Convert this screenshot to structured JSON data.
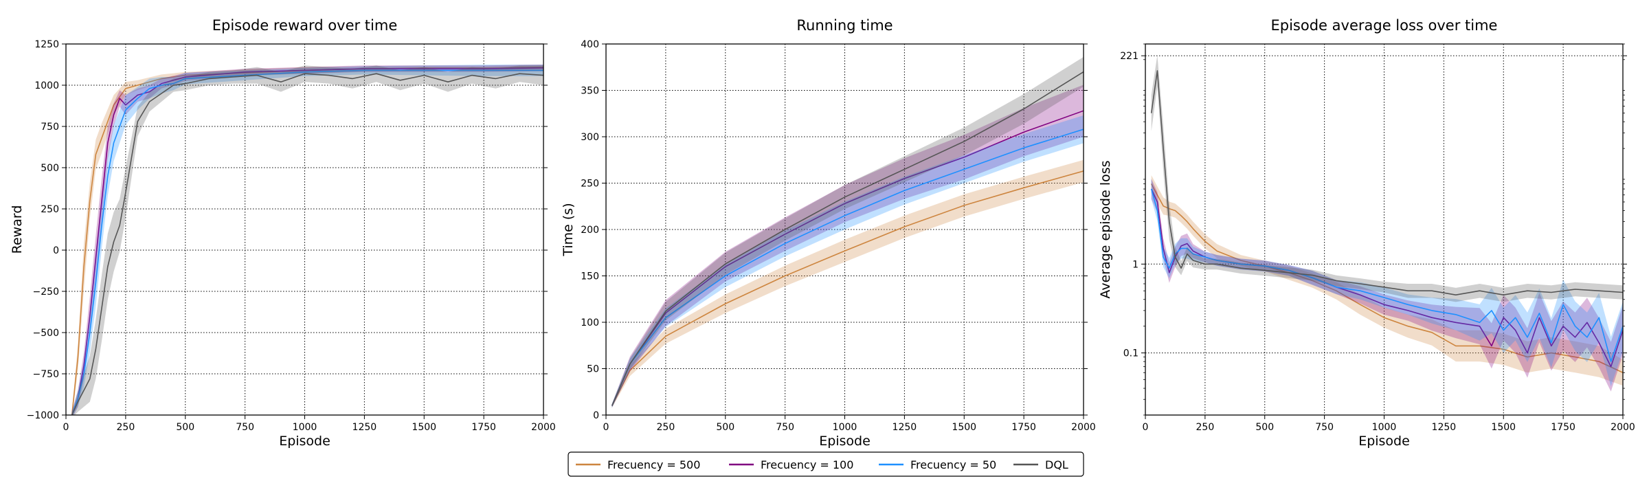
{
  "figure": {
    "legend": {
      "placement": "bottom-center",
      "entries": [
        {
          "label": "Frecuency = 500",
          "color": "#cd853f"
        },
        {
          "label": "Frecuency = 100",
          "color": "#800080"
        },
        {
          "label": "Frecuency = 50",
          "color": "#1e90ff"
        },
        {
          "label": "DQL",
          "color": "#555555"
        }
      ]
    }
  },
  "chart_data": [
    {
      "type": "line",
      "title": "Episode reward over time",
      "xlabel": "Episode",
      "ylabel": "Reward",
      "xlim": [
        0,
        2000
      ],
      "ylim": [
        -1000,
        1250
      ],
      "xticks": [
        0,
        250,
        500,
        750,
        1000,
        1250,
        1500,
        1750,
        2000
      ],
      "yticks": [
        -1000,
        -750,
        -500,
        -250,
        0,
        250,
        500,
        750,
        1000,
        1250
      ],
      "ytick_labels": [
        "−1000",
        "−750",
        "−500",
        "−250",
        "0",
        "250",
        "500",
        "750",
        "1000",
        "1250"
      ],
      "grid": true,
      "series": [
        {
          "name": "Frecuency = 500",
          "color": "#cd853f",
          "x": [
            25,
            50,
            75,
            100,
            125,
            150,
            200,
            250,
            300,
            400,
            500,
            750,
            1000,
            1250,
            1500,
            1750,
            2000
          ],
          "y": [
            -1000,
            -650,
            -100,
            300,
            580,
            680,
            880,
            980,
            1000,
            1040,
            1060,
            1075,
            1090,
            1100,
            1105,
            1105,
            1110
          ],
          "band": [
            20,
            80,
            140,
            110,
            90,
            90,
            60,
            40,
            30,
            25,
            20,
            20,
            20,
            15,
            15,
            15,
            15
          ]
        },
        {
          "name": "Frecuency = 100",
          "color": "#800080",
          "x": [
            25,
            50,
            75,
            100,
            125,
            150,
            175,
            200,
            225,
            250,
            300,
            350,
            400,
            500,
            750,
            1000,
            1250,
            1500,
            1750,
            2000
          ],
          "y": [
            -1000,
            -900,
            -700,
            -400,
            -50,
            300,
            650,
            820,
            920,
            880,
            940,
            960,
            1010,
            1050,
            1080,
            1090,
            1100,
            1100,
            1100,
            1105
          ],
          "band": [
            20,
            50,
            80,
            120,
            140,
            140,
            100,
            70,
            50,
            60,
            40,
            40,
            30,
            25,
            20,
            20,
            20,
            20,
            20,
            20
          ]
        },
        {
          "name": "Frecuency = 50",
          "color": "#1e90ff",
          "x": [
            25,
            50,
            75,
            100,
            125,
            150,
            175,
            200,
            225,
            250,
            300,
            350,
            400,
            450,
            500,
            750,
            1000,
            1250,
            1500,
            1750,
            2000
          ],
          "y": [
            -1000,
            -900,
            -750,
            -500,
            -200,
            150,
            450,
            650,
            750,
            850,
            920,
            980,
            1000,
            1010,
            1040,
            1060,
            1080,
            1090,
            1090,
            1090,
            1090
          ],
          "band": [
            20,
            50,
            80,
            120,
            140,
            140,
            120,
            110,
            100,
            90,
            70,
            60,
            50,
            40,
            35,
            30,
            25,
            25,
            30,
            35,
            35
          ]
        },
        {
          "name": "DQL",
          "color": "#555555",
          "x": [
            25,
            50,
            75,
            100,
            125,
            150,
            175,
            200,
            225,
            250,
            300,
            350,
            400,
            450,
            500,
            600,
            700,
            800,
            900,
            1000,
            1100,
            1200,
            1300,
            1400,
            1500,
            1600,
            1700,
            1800,
            1900,
            2000
          ],
          "y": [
            -1000,
            -920,
            -850,
            -780,
            -600,
            -350,
            -100,
            50,
            150,
            350,
            780,
            900,
            950,
            1000,
            1010,
            1040,
            1050,
            1060,
            1020,
            1070,
            1060,
            1040,
            1070,
            1030,
            1060,
            1020,
            1060,
            1040,
            1070,
            1060
          ],
          "band": [
            20,
            60,
            100,
            140,
            180,
            200,
            200,
            180,
            160,
            150,
            90,
            60,
            50,
            40,
            40,
            40,
            40,
            50,
            60,
            50,
            50,
            60,
            50,
            60,
            50,
            60,
            50,
            60,
            50,
            60
          ]
        }
      ]
    },
    {
      "type": "line",
      "title": "Running time",
      "xlabel": "Episode",
      "ylabel": "Time (s)",
      "xlim": [
        0,
        2000
      ],
      "ylim": [
        0,
        400
      ],
      "xticks": [
        0,
        250,
        500,
        750,
        1000,
        1250,
        1500,
        1750,
        2000
      ],
      "yticks": [
        0,
        50,
        100,
        150,
        200,
        250,
        300,
        350,
        400
      ],
      "ytick_labels": [
        "0",
        "50",
        "100",
        "150",
        "200",
        "250",
        "300",
        "350",
        "400"
      ],
      "grid": true,
      "series": [
        {
          "name": "Frecuency = 500",
          "color": "#cd853f",
          "x": [
            25,
            100,
            250,
            500,
            750,
            1000,
            1250,
            1500,
            1750,
            2000
          ],
          "y": [
            10,
            48,
            85,
            120,
            150,
            177,
            203,
            226,
            245,
            263
          ],
          "band": [
            2,
            6,
            8,
            10,
            11,
            12,
            12,
            12,
            12,
            12
          ]
        },
        {
          "name": "Frecuency = 100",
          "color": "#800080",
          "x": [
            25,
            100,
            250,
            500,
            750,
            1000,
            1250,
            1500,
            1750,
            2000
          ],
          "y": [
            10,
            55,
            110,
            160,
            195,
            228,
            255,
            278,
            305,
            328
          ],
          "band": [
            2,
            8,
            14,
            16,
            18,
            20,
            22,
            24,
            26,
            28
          ]
        },
        {
          "name": "Frecuency = 50",
          "color": "#1e90ff",
          "x": [
            25,
            100,
            250,
            500,
            750,
            1000,
            1250,
            1500,
            1750,
            2000
          ],
          "y": [
            10,
            55,
            105,
            150,
            185,
            215,
            242,
            265,
            288,
            308
          ],
          "band": [
            2,
            6,
            10,
            12,
            14,
            15,
            15,
            15,
            15,
            15
          ]
        },
        {
          "name": "DQL",
          "color": "#555555",
          "x": [
            25,
            100,
            250,
            500,
            750,
            1000,
            1250,
            1500,
            1750,
            2000
          ],
          "y": [
            10,
            55,
            112,
            163,
            200,
            235,
            265,
            295,
            330,
            370
          ],
          "band": [
            2,
            6,
            10,
            12,
            12,
            13,
            14,
            15,
            16,
            16
          ]
        }
      ]
    },
    {
      "type": "line",
      "title": "Episode average loss over time",
      "xlabel": "Episode",
      "ylabel": "Average episode loss",
      "xlim": [
        0,
        2000
      ],
      "yscale": "log",
      "ylim": [
        0.02,
        300
      ],
      "xticks": [
        0,
        250,
        500,
        750,
        1000,
        1250,
        1500,
        1750,
        2000
      ],
      "yticks": [
        0.1,
        1,
        221
      ],
      "ytick_labels": [
        "0.1",
        "1",
        "221"
      ],
      "grid": true,
      "series": [
        {
          "name": "Frecuency = 500",
          "color": "#cd853f",
          "x": [
            25,
            50,
            75,
            100,
            125,
            150,
            175,
            200,
            250,
            300,
            400,
            500,
            600,
            700,
            800,
            900,
            1000,
            1100,
            1200,
            1300,
            1400,
            1500,
            1600,
            1700,
            1800,
            1900,
            2000
          ],
          "y": [
            8,
            6,
            4.5,
            4.2,
            4.0,
            3.5,
            3.0,
            2.5,
            1.8,
            1.4,
            1.1,
            0.95,
            0.8,
            0.65,
            0.5,
            0.35,
            0.25,
            0.2,
            0.17,
            0.12,
            0.12,
            0.11,
            0.09,
            0.1,
            0.09,
            0.08,
            0.06
          ],
          "band": [
            1.25,
            1.25,
            1.25,
            1.2,
            1.2,
            1.2,
            1.2,
            1.2,
            1.2,
            1.2,
            1.15,
            1.15,
            1.2,
            1.2,
            1.25,
            1.3,
            1.3,
            1.35,
            1.4,
            1.5,
            1.5,
            1.5,
            1.5,
            1.5,
            1.5,
            1.5,
            1.4
          ]
        },
        {
          "name": "Frecuency = 100",
          "color": "#800080",
          "x": [
            25,
            50,
            75,
            100,
            125,
            150,
            175,
            200,
            250,
            300,
            400,
            500,
            600,
            700,
            800,
            900,
            1000,
            1100,
            1200,
            1300,
            1400,
            1450,
            1500,
            1550,
            1600,
            1650,
            1700,
            1750,
            1800,
            1850,
            1900,
            1950,
            2000
          ],
          "y": [
            7,
            5,
            1.5,
            0.8,
            1.2,
            1.6,
            1.7,
            1.4,
            1.2,
            1.1,
            1.0,
            0.95,
            0.85,
            0.7,
            0.55,
            0.45,
            0.35,
            0.3,
            0.25,
            0.22,
            0.2,
            0.12,
            0.25,
            0.18,
            0.1,
            0.25,
            0.12,
            0.2,
            0.15,
            0.22,
            0.13,
            0.07,
            0.18
          ],
          "band": [
            1.3,
            1.3,
            1.3,
            1.3,
            1.3,
            1.3,
            1.3,
            1.2,
            1.15,
            1.15,
            1.15,
            1.15,
            1.15,
            1.2,
            1.2,
            1.25,
            1.3,
            1.3,
            1.4,
            1.5,
            1.6,
            1.8,
            1.8,
            1.8,
            1.9,
            1.9,
            1.9,
            1.9,
            1.9,
            1.9,
            1.9,
            1.9,
            1.9
          ]
        },
        {
          "name": "Frecuency = 50",
          "color": "#1e90ff",
          "x": [
            25,
            50,
            75,
            100,
            125,
            150,
            175,
            200,
            250,
            300,
            400,
            500,
            600,
            700,
            800,
            900,
            1000,
            1100,
            1200,
            1300,
            1400,
            1450,
            1500,
            1550,
            1600,
            1650,
            1700,
            1750,
            1800,
            1850,
            1900,
            1950,
            2000
          ],
          "y": [
            7,
            4,
            1.2,
            0.9,
            1.3,
            1.5,
            1.5,
            1.3,
            1.2,
            1.1,
            1.0,
            0.95,
            0.85,
            0.7,
            0.55,
            0.5,
            0.42,
            0.35,
            0.3,
            0.27,
            0.22,
            0.3,
            0.18,
            0.25,
            0.15,
            0.28,
            0.13,
            0.35,
            0.2,
            0.15,
            0.25,
            0.08,
            0.2
          ],
          "band": [
            1.3,
            1.3,
            1.3,
            1.3,
            1.3,
            1.3,
            1.3,
            1.2,
            1.15,
            1.15,
            1.15,
            1.15,
            1.15,
            1.2,
            1.2,
            1.25,
            1.3,
            1.3,
            1.4,
            1.5,
            1.6,
            1.8,
            1.8,
            1.8,
            1.9,
            1.9,
            1.9,
            1.9,
            1.9,
            1.9,
            1.9,
            1.9,
            1.9
          ]
        },
        {
          "name": "DQL",
          "color": "#555555",
          "x": [
            25,
            50,
            75,
            100,
            125,
            150,
            175,
            200,
            250,
            300,
            400,
            500,
            600,
            700,
            800,
            900,
            1000,
            1100,
            1200,
            1300,
            1400,
            1500,
            1600,
            1700,
            1800,
            1900,
            2000
          ],
          "y": [
            50,
            150,
            20,
            3,
            1.2,
            0.9,
            1.3,
            1.1,
            1.0,
            1.0,
            0.9,
            0.85,
            0.8,
            0.75,
            0.65,
            0.6,
            0.55,
            0.5,
            0.5,
            0.45,
            0.5,
            0.45,
            0.5,
            0.48,
            0.52,
            0.5,
            0.48
          ],
          "band": [
            1.6,
            1.5,
            1.8,
            1.6,
            1.3,
            1.2,
            1.2,
            1.2,
            1.15,
            1.15,
            1.15,
            1.15,
            1.15,
            1.15,
            1.15,
            1.15,
            1.15,
            1.2,
            1.2,
            1.2,
            1.2,
            1.2,
            1.2,
            1.2,
            1.2,
            1.2,
            1.2
          ]
        }
      ]
    }
  ]
}
